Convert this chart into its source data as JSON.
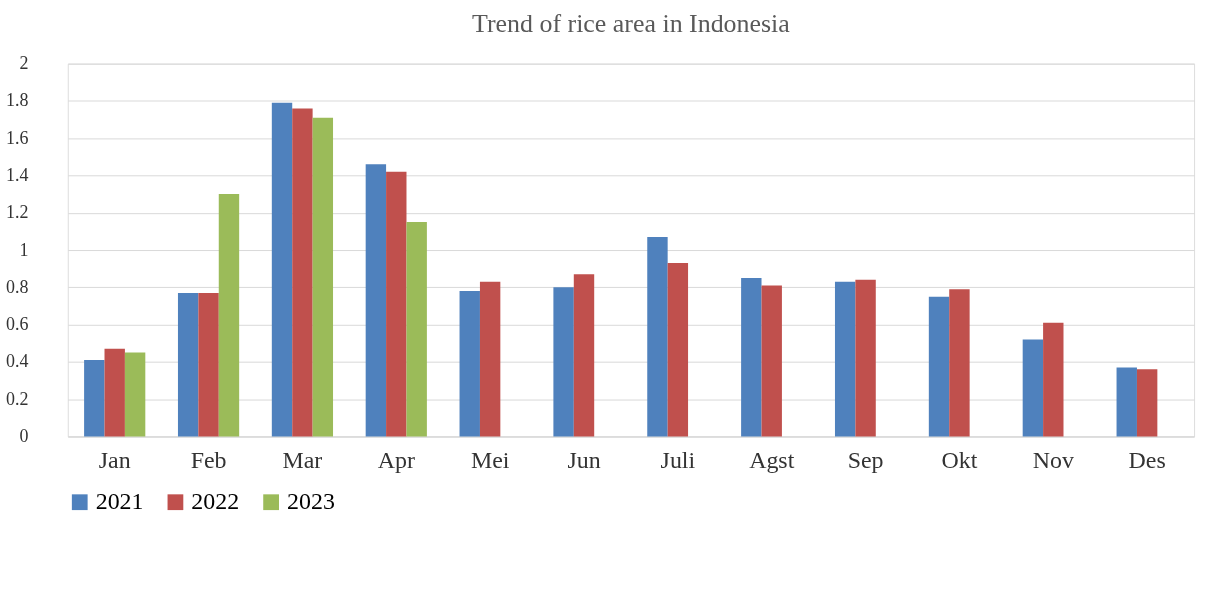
{
  "chart_data": {
    "type": "bar",
    "title": "Trend of rice area in Indonesia",
    "categories": [
      "Jan",
      "Feb",
      "Mar",
      "Apr",
      "Mei",
      "Jun",
      "Juli",
      "Agst",
      "Sep",
      "Okt",
      "Nov",
      "Des"
    ],
    "series": [
      {
        "name": "2021",
        "color": "#4f81bd",
        "values": [
          0.41,
          0.77,
          1.79,
          1.46,
          0.78,
          0.8,
          1.07,
          0.85,
          0.83,
          0.75,
          0.52,
          0.37
        ]
      },
      {
        "name": "2022",
        "color": "#c0504d",
        "values": [
          0.47,
          0.77,
          1.76,
          1.42,
          0.83,
          0.87,
          0.93,
          0.81,
          0.84,
          0.79,
          0.61,
          0.36
        ]
      },
      {
        "name": "2023",
        "color": "#9bbb59",
        "values": [
          0.45,
          1.3,
          1.71,
          1.15,
          null,
          null,
          null,
          null,
          null,
          null,
          null,
          null
        ]
      }
    ],
    "ylim": [
      0,
      2
    ],
    "yticks": [
      0,
      0.2,
      0.4,
      0.6,
      0.8,
      1,
      1.2,
      1.4,
      1.6,
      1.8,
      2
    ],
    "grid": "y",
    "legend": "bottom"
  }
}
